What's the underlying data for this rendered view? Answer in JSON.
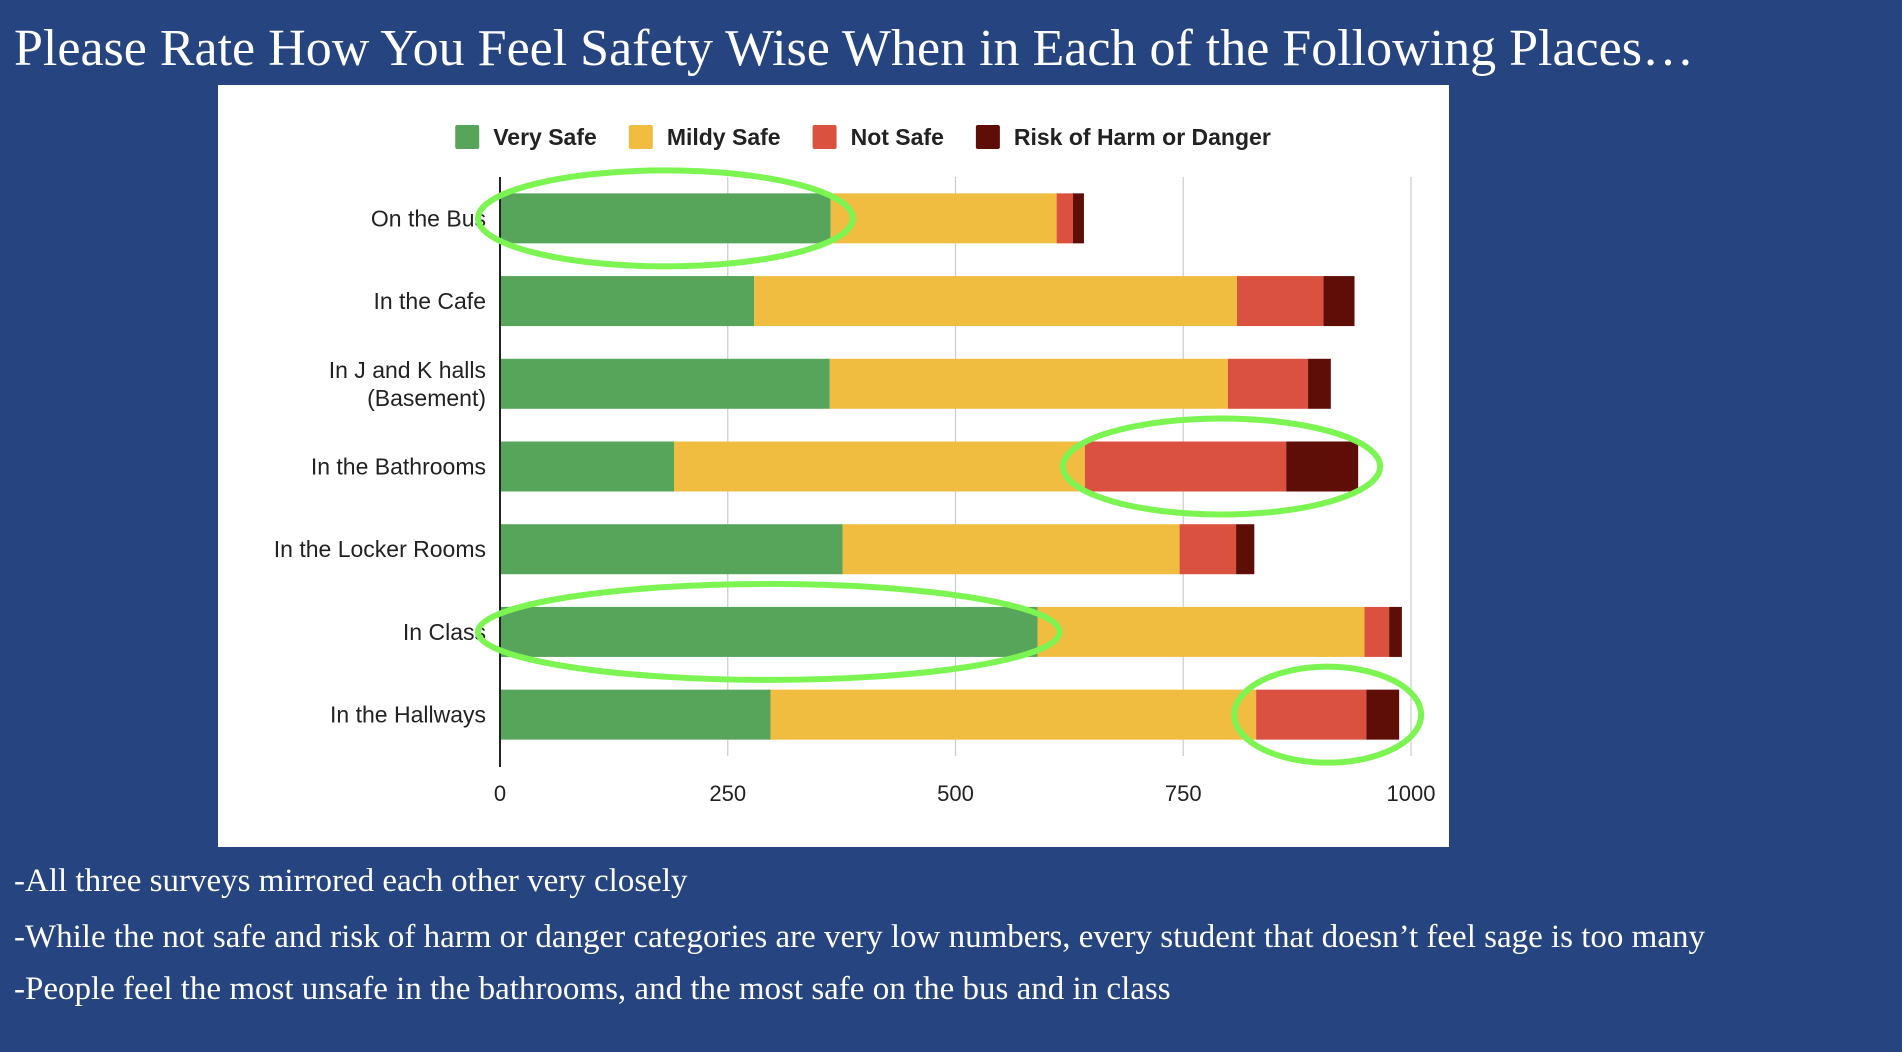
{
  "slide": {
    "title": "Please Rate How You Feel Safety Wise When in Each of the Following Places…",
    "notes": [
      "-All three surveys mirrored each other very closely",
      "-While the not safe and risk of harm or danger categories are very low numbers, every student that doesn’t feel sage is too many",
      "-People feel the most unsafe in the bathrooms, and the most safe on the bus and in class"
    ]
  },
  "highlight_color": "#7cf553",
  "chart_data": {
    "type": "bar",
    "orientation": "horizontal",
    "stacked": true,
    "categories": [
      [
        "On the Bus"
      ],
      [
        "In the Cafe"
      ],
      [
        "In J and K halls",
        "(Basement)"
      ],
      [
        "In the Bathrooms"
      ],
      [
        "In the Locker Rooms"
      ],
      [
        "In Class"
      ],
      [
        "In the Hallways"
      ]
    ],
    "series": [
      {
        "name": "Very Safe",
        "color": "#57a55a",
        "values": [
          363,
          279,
          362,
          191,
          376,
          590,
          297
        ]
      },
      {
        "name": "Mildy Safe",
        "color": "#f1bd41",
        "values": [
          248,
          530,
          437,
          451,
          370,
          359,
          533
        ]
      },
      {
        "name": "Not Safe",
        "color": "#db5140",
        "values": [
          18,
          95,
          88,
          221,
          62,
          27,
          121
        ]
      },
      {
        "name": "Risk of Harm or Danger",
        "color": "#5e0e07",
        "values": [
          12,
          34,
          25,
          79,
          20,
          14,
          36
        ]
      }
    ],
    "x_ticks": [
      "0",
      "250",
      "500",
      "750",
      "1000"
    ],
    "xlim": [
      0,
      1000
    ],
    "grid": true,
    "legend_position": "top",
    "highlighted": [
      {
        "category": "On the Bus",
        "series": [
          "Very Safe"
        ]
      },
      {
        "category": "In the Bathrooms",
        "series": [
          "Not Safe",
          "Risk of Harm or Danger"
        ]
      },
      {
        "category": "In Class",
        "series": [
          "Very Safe"
        ]
      },
      {
        "category": "In the Hallways",
        "series": [
          "Not Safe",
          "Risk of Harm or Danger"
        ]
      }
    ]
  }
}
